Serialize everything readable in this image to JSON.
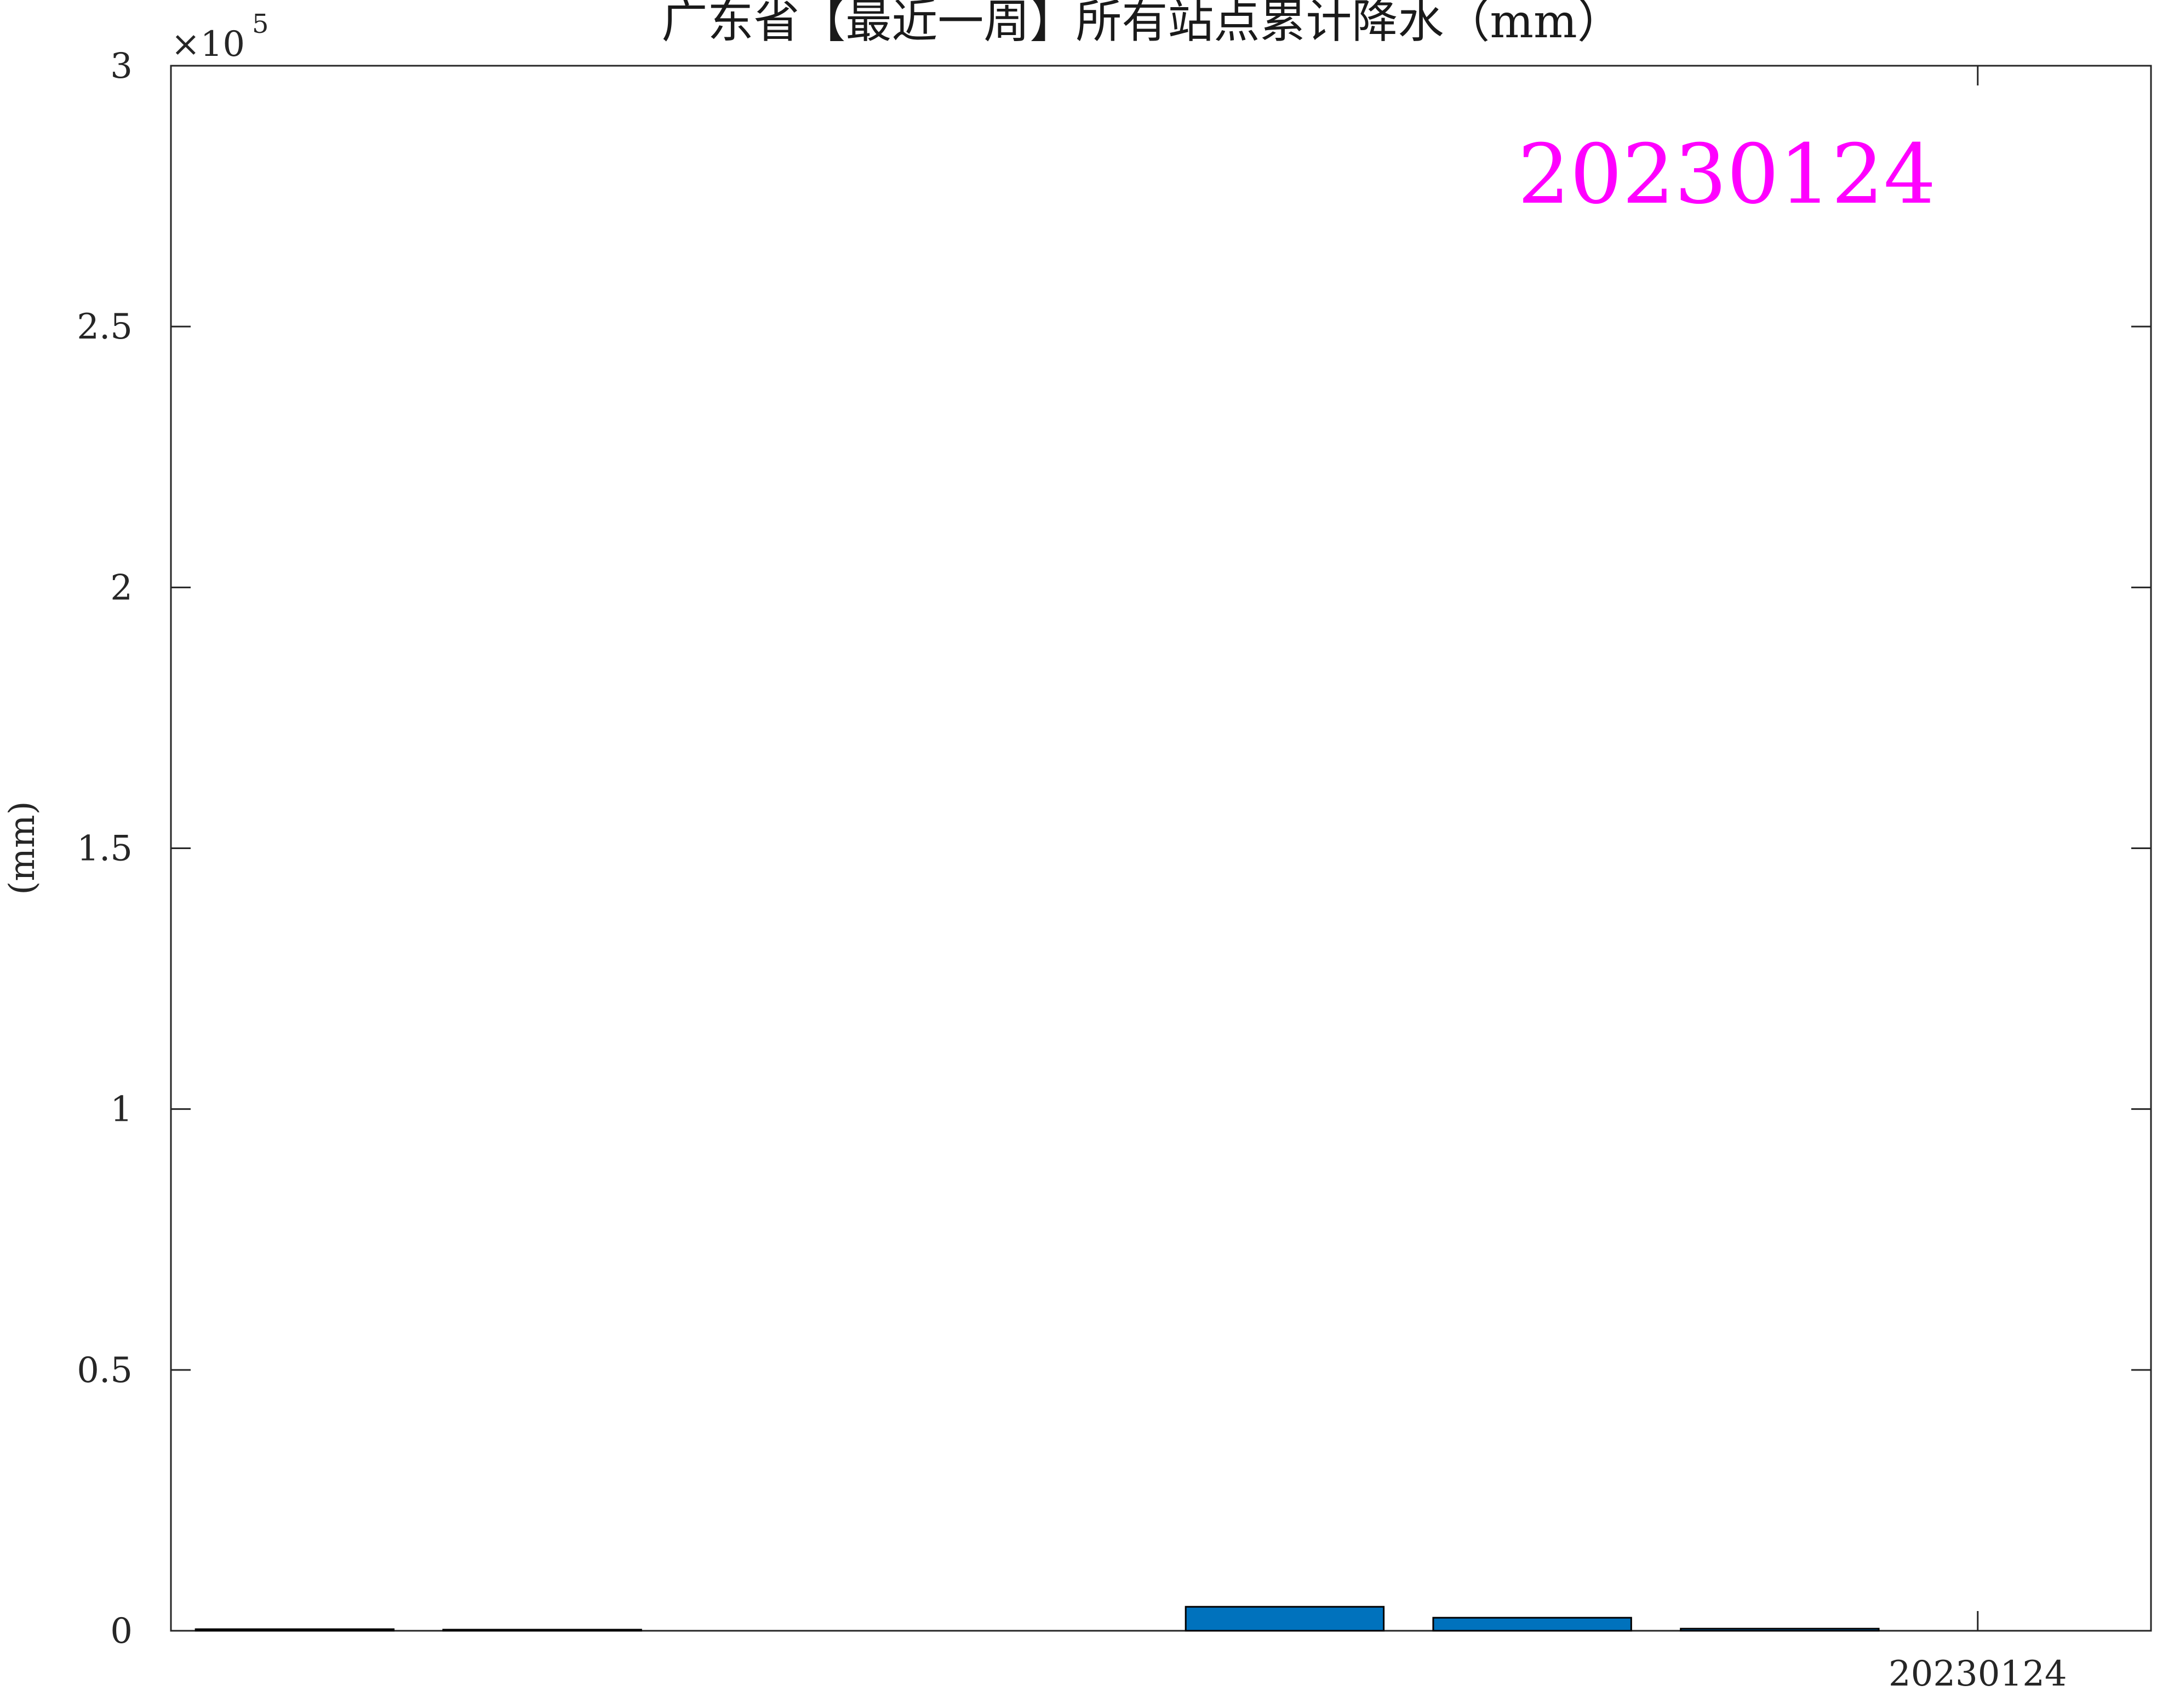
{
  "chart_data": {
    "type": "bar",
    "title": "广东省【最近一周】所有站点累计降水（mm）",
    "ylabel": "(mm)",
    "xlabel": "",
    "exponent_label": "×10",
    "exponent_power": "5",
    "annotation": "20230124",
    "annotation_color": "#ff00ff",
    "bar_color": "#0072bd",
    "ylim": [
      0,
      300000
    ],
    "yticks": [
      0,
      50000,
      100000,
      150000,
      200000,
      250000,
      300000
    ],
    "ytick_labels": [
      "0",
      "0.5",
      "1",
      "1.5",
      "2",
      "2.5",
      "3"
    ],
    "xlim": [
      0.5,
      8.5
    ],
    "xticks": [
      7.8
    ],
    "xtick_labels": [
      "20230124"
    ],
    "x": [
      1,
      2,
      3,
      4,
      5,
      6,
      7
    ],
    "values": [
      300,
      150,
      0,
      0,
      4600,
      2500,
      400
    ],
    "grid": false
  }
}
